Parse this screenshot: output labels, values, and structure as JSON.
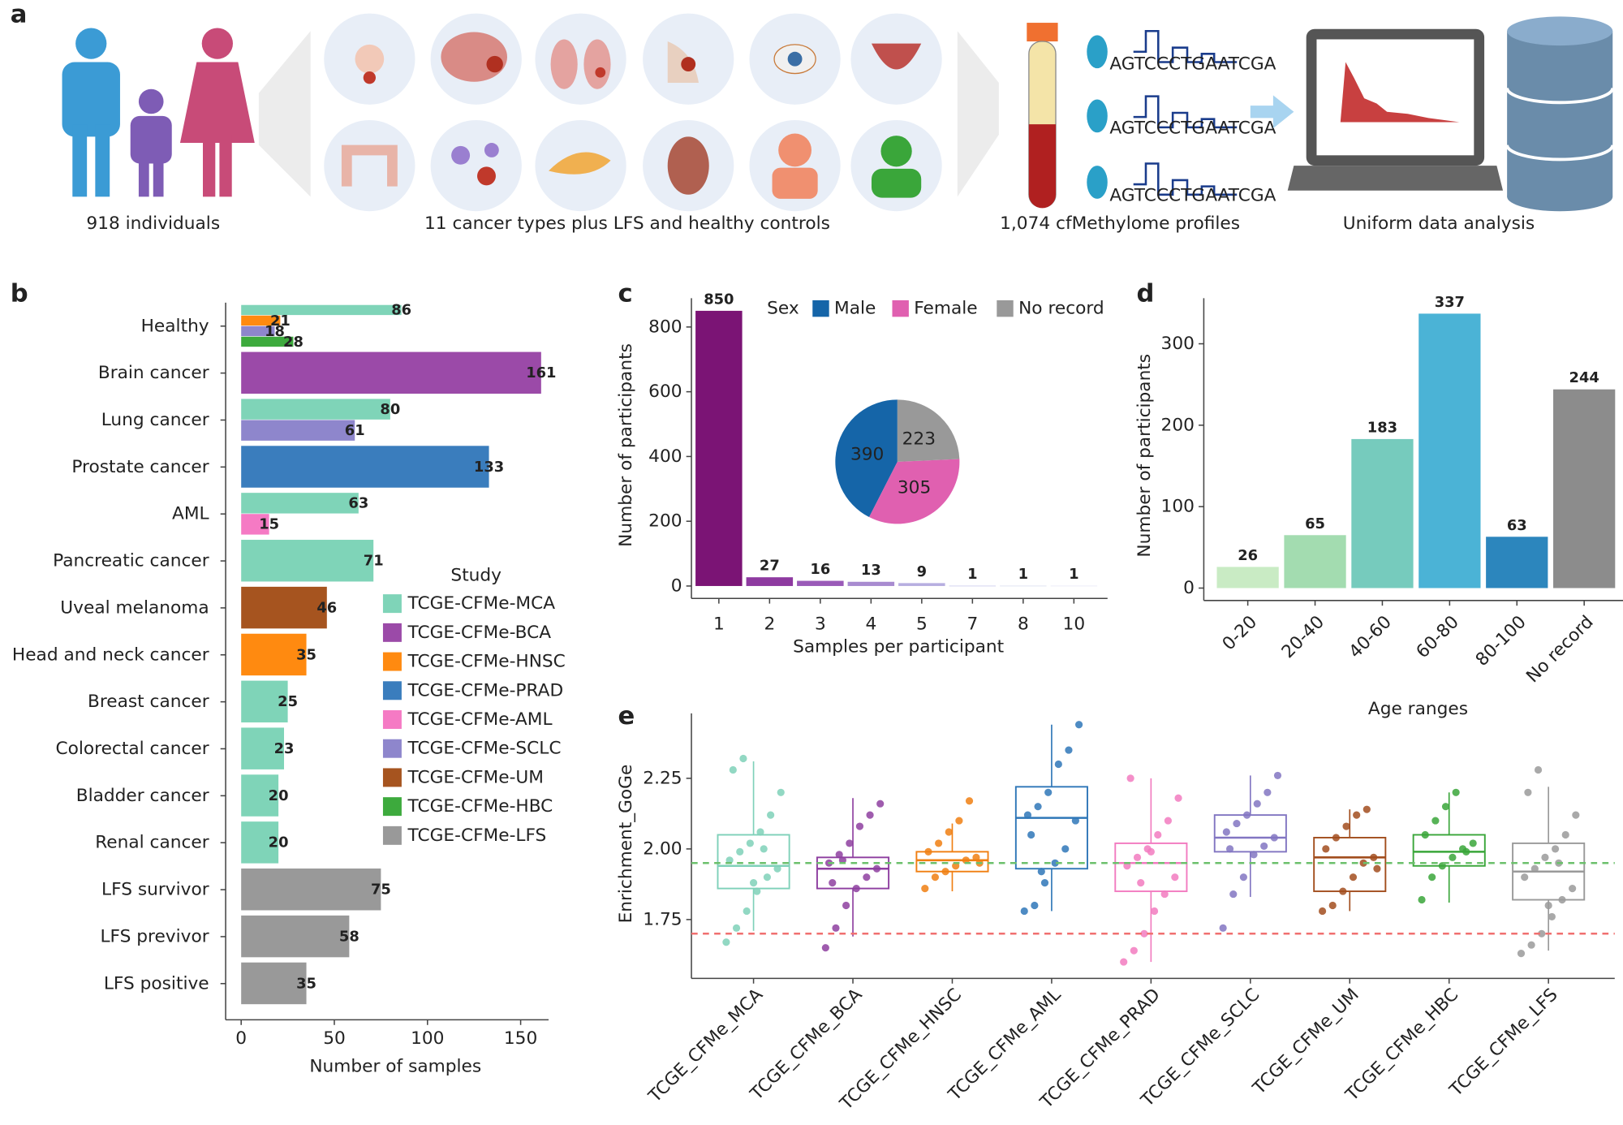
{
  "panel_a": {
    "label": "a",
    "captions": [
      "918 individuals",
      "11 cancer types plus LFS and healthy controls",
      "1,074 cfMethylome profiles",
      "Uniform data analysis"
    ],
    "sequence": "AGTCCCTGAATCGA"
  },
  "chart_data": [
    {
      "type": "hbar",
      "panel": "b",
      "categories": [
        "Healthy",
        "Brain cancer",
        "Lung cancer",
        "Prostate cancer",
        "AML",
        "Pancreatic cancer",
        "Uveal melanoma",
        "Head and neck cancer",
        "Breast cancer",
        "Colorectal cancer",
        "Bladder cancer",
        "Renal cancer",
        "LFS survivor",
        "LFS previvor",
        "LFS positive"
      ],
      "series": [
        {
          "name": "TCGE-CFMe-MCA",
          "color": "#7fd4b8",
          "values": [
            86,
            null,
            80,
            null,
            63,
            71,
            null,
            null,
            25,
            23,
            20,
            20,
            null,
            null,
            null
          ]
        },
        {
          "name": "TCGE-CFMe-BCA",
          "color": "#9b4aa8",
          "values": [
            null,
            161,
            null,
            null,
            null,
            null,
            null,
            null,
            null,
            null,
            null,
            null,
            null,
            null,
            null
          ]
        },
        {
          "name": "TCGE-CFMe-HNSC",
          "color": "#ff8a10",
          "values": [
            21,
            null,
            null,
            null,
            null,
            null,
            null,
            35,
            null,
            null,
            null,
            null,
            null,
            null,
            null
          ]
        },
        {
          "name": "TCGE-CFMe-PRAD",
          "color": "#3a7dbd",
          "values": [
            null,
            null,
            null,
            133,
            null,
            null,
            null,
            null,
            null,
            null,
            null,
            null,
            null,
            null,
            null
          ]
        },
        {
          "name": "TCGE-CFMe-AML",
          "color": "#f57ac4",
          "values": [
            null,
            null,
            null,
            null,
            15,
            null,
            null,
            null,
            null,
            null,
            null,
            null,
            null,
            null,
            null
          ]
        },
        {
          "name": "TCGE-CFMe-SCLC",
          "color": "#8e86cc",
          "values": [
            18,
            null,
            61,
            null,
            null,
            null,
            null,
            null,
            null,
            null,
            null,
            null,
            null,
            null,
            null
          ]
        },
        {
          "name": "TCGE-CFMe-UM",
          "color": "#a6541f",
          "values": [
            null,
            null,
            null,
            null,
            null,
            null,
            46,
            null,
            null,
            null,
            null,
            null,
            null,
            null,
            null
          ]
        },
        {
          "name": "TCGE-CFMe-HBC",
          "color": "#3daa3d",
          "values": [
            28,
            null,
            null,
            null,
            null,
            null,
            null,
            null,
            null,
            null,
            null,
            null,
            null,
            null,
            null
          ]
        },
        {
          "name": "TCGE-CFMe-LFS",
          "color": "#999999",
          "values": [
            null,
            null,
            null,
            null,
            null,
            null,
            null,
            null,
            null,
            null,
            null,
            null,
            75,
            58,
            35
          ]
        }
      ],
      "legend_title": "Study",
      "xlabel": "Number of samples",
      "xlim": [
        0,
        165
      ],
      "xticks": [
        0,
        50,
        100,
        150
      ]
    },
    {
      "type": "bar",
      "panel": "c",
      "categories": [
        "1",
        "2",
        "3",
        "4",
        "5",
        "7",
        "8",
        "10"
      ],
      "values": [
        850,
        27,
        16,
        13,
        9,
        1,
        1,
        1
      ],
      "colors": [
        "#7b1475",
        "#8e3aa0",
        "#9a5ab8",
        "#a88bd0",
        "#b7aee0",
        "#c8c8ea",
        "#d8dbf0",
        "#e6e8f6"
      ],
      "xlabel": "Samples per participant",
      "ylabel": "Number of participants",
      "ylim": [
        0,
        889
      ],
      "yticks": [
        0,
        200,
        400,
        600,
        800
      ]
    },
    {
      "type": "pie",
      "legend_title": "Sex",
      "categories": [
        "Male",
        "Female",
        "No record"
      ],
      "values": [
        390,
        305,
        223
      ],
      "colors": [
        "#1565a8",
        "#e060b0",
        "#999999"
      ]
    },
    {
      "type": "bar",
      "panel": "d",
      "categories": [
        "0-20",
        "20-40",
        "40-60",
        "60-80",
        "80-100",
        "No record"
      ],
      "values": [
        26,
        65,
        183,
        337,
        63,
        244
      ],
      "colors": [
        "#c9ebc4",
        "#a3dcb0",
        "#76cbbd",
        "#4bb3d6",
        "#2c86bd",
        "#8c8c8c"
      ],
      "xlabel": "Age ranges",
      "ylabel": "Number of participants",
      "ylim": [
        0,
        356
      ],
      "yticks": [
        0,
        100,
        200,
        300
      ]
    },
    {
      "type": "box",
      "panel": "e",
      "categories": [
        "TCGE_CFMe_MCA",
        "TCGE_CFMe_BCA",
        "TCGE_CFMe_HNSC",
        "TCGE_CFMe_AML",
        "TCGE_CFMe_PRAD",
        "TCGE_CFMe_SCLC",
        "TCGE_CFMe_UM",
        "TCGE_CFMe_HBC",
        "TCGE_CFMe_LFS"
      ],
      "ylabel": "Enrichment_GoGe",
      "ylim": [
        1.56,
        2.48
      ],
      "yticks": [
        1.75,
        {
          "value": 2,
          "label": "2.00"
        },
        2.25
      ],
      "reference_lines": [
        {
          "value": 1.95,
          "color": "#6cc06c"
        },
        {
          "value": 1.7,
          "color": "#f07070"
        }
      ],
      "boxes": [
        {
          "color": "#7fd1b9",
          "whisker_low": 1.71,
          "q1": 1.86,
          "median": 1.94,
          "q3": 2.05,
          "whisker_high": 2.31,
          "points": [
            1.67,
            1.72,
            1.78,
            1.85,
            1.9,
            1.93,
            1.96,
            1.99,
            2.02,
            2.06,
            2.12,
            2.2,
            2.28,
            2.32,
            1.88,
            2.0
          ]
        },
        {
          "color": "#8e3fa0",
          "whisker_low": 1.69,
          "q1": 1.86,
          "median": 1.93,
          "q3": 1.97,
          "whisker_high": 2.18,
          "points": [
            1.65,
            1.72,
            1.8,
            1.86,
            1.9,
            1.93,
            1.95,
            1.98,
            2.02,
            2.08,
            2.12,
            2.16,
            1.88,
            1.96
          ]
        },
        {
          "color": "#f07f12",
          "whisker_low": 1.85,
          "q1": 1.92,
          "median": 1.96,
          "q3": 1.99,
          "whisker_high": 2.09,
          "points": [
            1.86,
            1.9,
            1.92,
            1.94,
            1.96,
            1.97,
            1.99,
            2.02,
            2.06,
            2.1,
            2.17,
            1.95
          ]
        },
        {
          "color": "#2f77b8",
          "whisker_low": 1.78,
          "q1": 1.93,
          "median": 2.11,
          "q3": 2.22,
          "whisker_high": 2.44,
          "points": [
            1.78,
            1.8,
            1.88,
            1.95,
            2.0,
            2.1,
            2.12,
            2.15,
            2.2,
            2.3,
            2.35,
            2.44,
            2.05,
            1.92
          ]
        },
        {
          "color": "#f27bc0",
          "whisker_low": 1.6,
          "q1": 1.85,
          "median": 1.95,
          "q3": 2.02,
          "whisker_high": 2.25,
          "points": [
            1.6,
            1.64,
            1.7,
            1.78,
            1.84,
            1.9,
            1.94,
            1.97,
            2.0,
            2.05,
            2.1,
            2.18,
            2.25,
            1.88,
            1.99
          ]
        },
        {
          "color": "#8276c2",
          "whisker_low": 1.83,
          "q1": 1.99,
          "median": 2.04,
          "q3": 2.12,
          "whisker_high": 2.26,
          "points": [
            1.72,
            1.84,
            1.9,
            1.98,
            2.01,
            2.04,
            2.06,
            2.09,
            2.12,
            2.16,
            2.2,
            2.26,
            2.0
          ]
        },
        {
          "color": "#a24e1e",
          "whisker_low": 1.78,
          "q1": 1.85,
          "median": 1.97,
          "q3": 2.04,
          "whisker_high": 2.14,
          "points": [
            1.78,
            1.8,
            1.85,
            1.9,
            1.95,
            1.97,
            2.0,
            2.04,
            2.08,
            2.12,
            2.14,
            1.93
          ]
        },
        {
          "color": "#3aa63a",
          "whisker_low": 1.81,
          "q1": 1.94,
          "median": 1.99,
          "q3": 2.05,
          "whisker_high": 2.2,
          "points": [
            1.82,
            1.9,
            1.94,
            1.97,
            2.0,
            2.02,
            2.05,
            2.1,
            2.15,
            2.2,
            1.99
          ]
        },
        {
          "color": "#9a9a9a",
          "whisker_low": 1.64,
          "q1": 1.82,
          "median": 1.92,
          "q3": 2.02,
          "whisker_high": 2.22,
          "points": [
            1.63,
            1.66,
            1.7,
            1.76,
            1.82,
            1.86,
            1.9,
            1.93,
            1.97,
            2.0,
            2.05,
            2.12,
            2.2,
            2.28,
            1.8,
            1.95
          ]
        }
      ]
    }
  ]
}
